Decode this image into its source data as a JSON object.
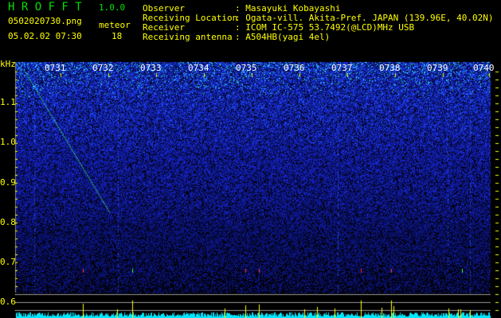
{
  "app": {
    "name": "H R O F F T",
    "version": "1.0.0"
  },
  "file": {
    "name": "0502020730.png",
    "datetime": "05.02.02 07:30"
  },
  "meteor": {
    "label": "meteor",
    "count": "18"
  },
  "info": [
    {
      "label": "Observer",
      "value": "Masayuki Kobayashi"
    },
    {
      "label": "Receiving Location",
      "value": "Ogata-vill. Akita-Pref. JAPAN (139.96E, 40.02N)"
    },
    {
      "label": "Receiver",
      "value": "ICOM IC-575 53.7492(@LCD)MHz USB"
    },
    {
      "label": "Receiving antenna",
      "value": "A504HB(yagi 4el)"
    }
  ],
  "spectrogram": {
    "y_unit": "kHz",
    "y_ticks": [
      "1.1",
      "1.0",
      "0.9",
      "0.8",
      "0.7",
      "0.6"
    ],
    "time_ticks": [
      "0731",
      "0732",
      "0733",
      "0734",
      "0735",
      "0736",
      "0737",
      "0738",
      "0739",
      "0740"
    ]
  },
  "colors": {
    "text": "#ffff00",
    "title": "#00e000",
    "histogram": "#00ffff",
    "spike": "#ffff00",
    "noise": "#1020c0"
  }
}
